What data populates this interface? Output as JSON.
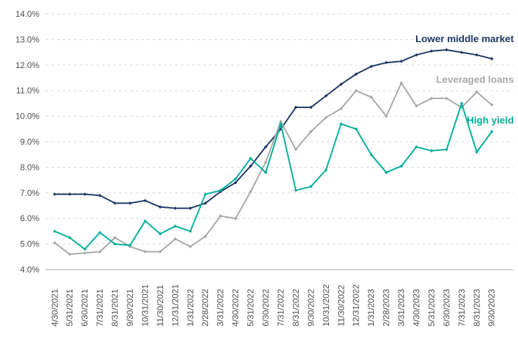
{
  "chart_data": {
    "type": "line",
    "x_labels": [
      "4/30/2021",
      "5/31/2021",
      "6/30/2021",
      "7/31/2021",
      "8/31/2021",
      "9/30/2021",
      "10/31/2021",
      "11/30/2021",
      "12/31/2021",
      "1/31/2022",
      "2/28/2022",
      "3/31/2022",
      "4/30/2022",
      "5/31/2022",
      "6/30/2022",
      "7/31/2022",
      "8/31/2022",
      "9/30/2022",
      "10/31/2022",
      "11/30/2022",
      "12/31/2022",
      "1/31/2023",
      "2/28/2023",
      "3/31/2023",
      "4/30/2023",
      "5/31/2023",
      "6/30/2023",
      "7/31/2023",
      "8/31/2023",
      "9/30/2023"
    ],
    "series": [
      {
        "name": "Lower middle market",
        "color": "#1F3864",
        "values": [
          6.95,
          6.95,
          6.95,
          6.9,
          6.6,
          6.6,
          6.7,
          6.45,
          6.4,
          6.4,
          6.6,
          7.05,
          7.4,
          8.05,
          8.8,
          9.5,
          10.35,
          10.35,
          10.8,
          11.25,
          11.65,
          11.95,
          12.1,
          12.15,
          12.4,
          12.55,
          12.6,
          12.5,
          12.4,
          12.25
        ]
      },
      {
        "name": "Leveraged loans",
        "color": "#A8A8A8",
        "values": [
          5.05,
          4.6,
          4.65,
          4.7,
          5.25,
          4.9,
          4.7,
          4.7,
          5.2,
          4.9,
          5.3,
          6.1,
          6.0,
          7.05,
          8.2,
          9.8,
          8.7,
          9.4,
          9.95,
          10.3,
          11.0,
          10.75,
          10.0,
          11.3,
          10.4,
          10.7,
          10.7,
          10.35,
          10.95,
          10.45
        ]
      },
      {
        "name": "High yield",
        "color": "#00AF9A",
        "values": [
          5.5,
          5.25,
          4.8,
          5.45,
          5.0,
          4.95,
          5.9,
          5.4,
          5.7,
          5.5,
          6.95,
          7.1,
          7.55,
          8.35,
          7.8,
          9.7,
          7.1,
          7.25,
          7.9,
          9.7,
          9.5,
          8.5,
          7.8,
          8.05,
          8.8,
          8.65,
          8.7,
          10.5,
          8.6,
          9.4
        ]
      }
    ],
    "y_axis": {
      "min": 4.0,
      "max": 14.0,
      "tick_step": 1.0,
      "tick_labels": [
        "14.0%",
        "13.0%",
        "12.0%",
        "11.0%",
        "10.0%",
        "9.0%",
        "8.0%",
        "7.0%",
        "6.0%",
        "5.0%",
        "4.0%"
      ]
    },
    "grid": {
      "horizontal": "dashed",
      "grid_color": "#D9D9D9",
      "axis_line_color": "#A0A0A0",
      "tick_label_color": "#4D4D4D"
    },
    "legend_position": "inline-right-of-plot",
    "title": "",
    "xlabel": "",
    "ylabel": ""
  }
}
